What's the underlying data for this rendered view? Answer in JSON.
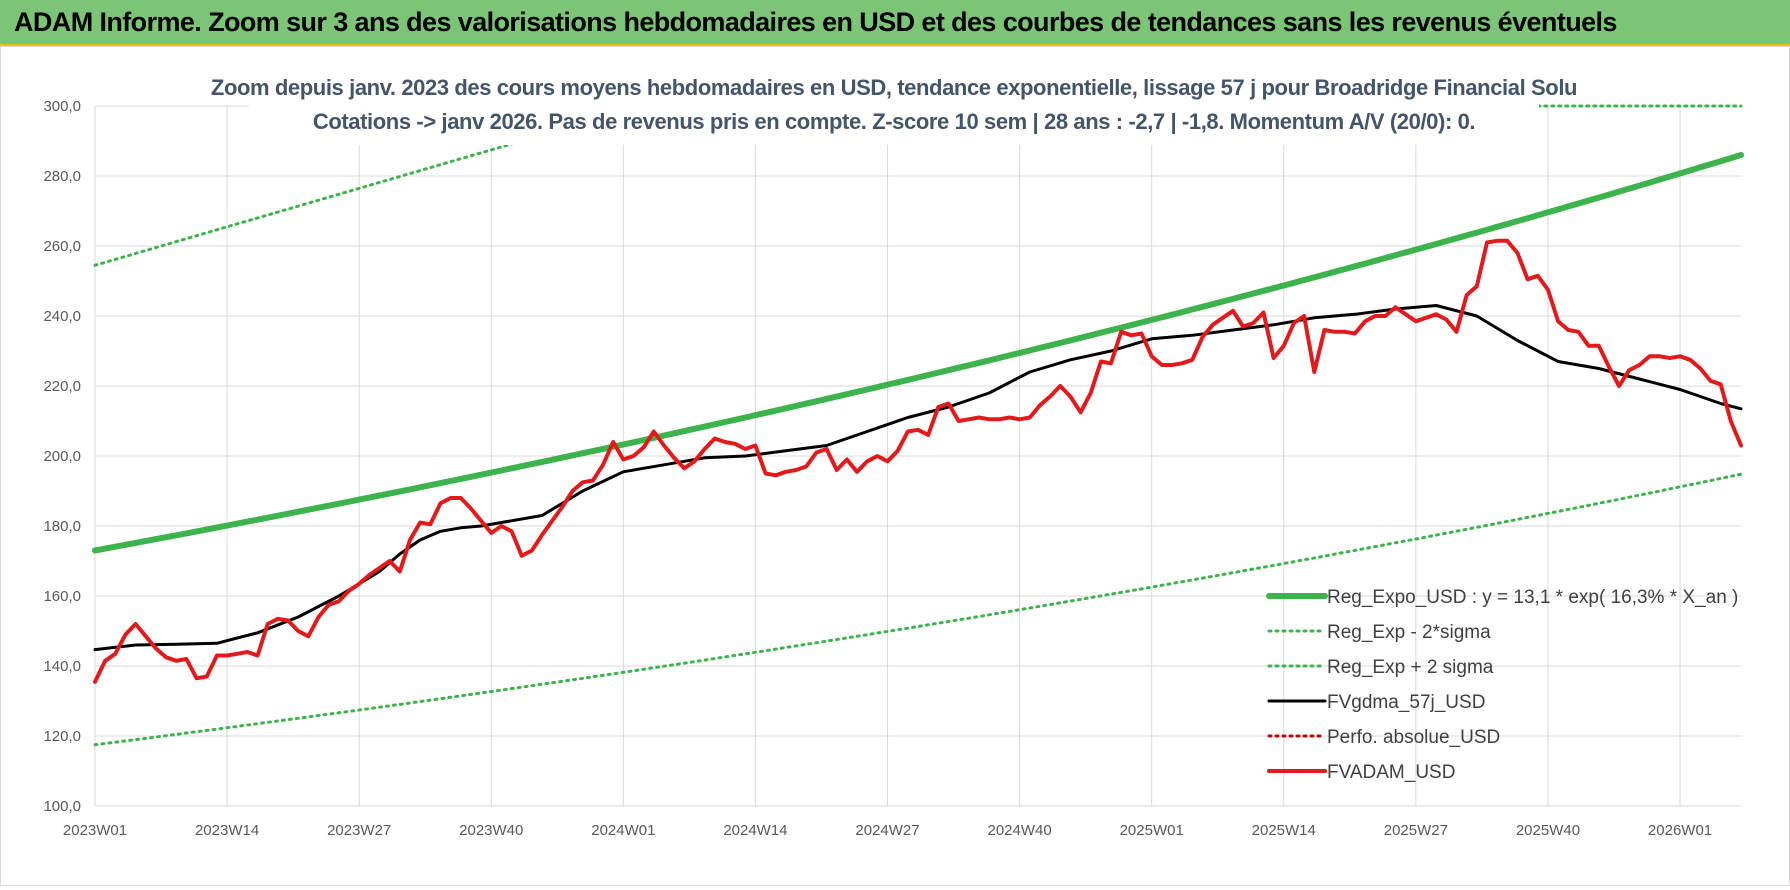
{
  "banner": {
    "title": "ADAM Informe. Zoom sur 3 ans des valorisations hebdomadaires en USD et des courbes de tendances sans les revenus éventuels"
  },
  "chart_data": {
    "type": "line",
    "title": "Zoom depuis janv. 2023 des cours moyens hebdomadaires en USD, tendance exponentielle, lissage 57 j pour Broadridge Financial Solu",
    "subtitle": "Cotations -> janv 2026. Pas de revenus pris en compte. Z-score 10 sem | 28 ans : -2,7 | -1,8. Momentum A/V (20/0): 0.",
    "xlabel": "",
    "ylabel": "",
    "ylim": [
      100,
      300
    ],
    "yticks": [
      "100,0",
      "120,0",
      "140,0",
      "160,0",
      "180,0",
      "200,0",
      "220,0",
      "240,0",
      "260,0",
      "280,0",
      "300,0"
    ],
    "xticks": [
      "2023W01",
      "2023W14",
      "2023W27",
      "2023W40",
      "2024W01",
      "2024W14",
      "2024W27",
      "2024W40",
      "2025W01",
      "2025W14",
      "2025W27",
      "2025W40",
      "2026W01"
    ],
    "x_range_weeks": [
      0,
      162
    ],
    "grid": true,
    "legend_position": "bottom-right",
    "series": [
      {
        "name": "Reg_Expo_USD : y = 13,1 * exp( 16,3% *  X_an )",
        "style": "solid-thick",
        "color": "#3cb44b",
        "x": [
          0,
          162
        ],
        "y": [
          173.0,
          286.0
        ],
        "curve": "exponential"
      },
      {
        "name": "Reg_Exp - 2*sigma",
        "style": "dotted",
        "color": "#3cb44b",
        "x": [
          0,
          162
        ],
        "y": [
          117.5,
          194.8
        ],
        "curve": "exponential"
      },
      {
        "name": "Reg_Exp + 2 sigma",
        "style": "dotted",
        "color": "#3cb44b",
        "x": [
          0,
          42,
          142,
          162
        ],
        "y": [
          254.5,
          290.0,
          300.0,
          300.0
        ],
        "note_clipped": true
      },
      {
        "name": "FVgdma_57j_USD",
        "style": "solid",
        "color": "#000000",
        "x": [
          0,
          4,
          8,
          12,
          14,
          16,
          20,
          24,
          28,
          30,
          32,
          34,
          36,
          38,
          40,
          44,
          48,
          52,
          56,
          60,
          64,
          68,
          72,
          76,
          80,
          84,
          88,
          92,
          96,
          100,
          104,
          108,
          112,
          116,
          120,
          124,
          128,
          132,
          136,
          140,
          144,
          148,
          152,
          156,
          160,
          162
        ],
        "y": [
          144.7,
          146.0,
          146.2,
          146.5,
          148.0,
          149.5,
          154.0,
          160.0,
          167.0,
          172.0,
          176.0,
          178.5,
          179.5,
          180.0,
          181.0,
          183.0,
          190.0,
          195.5,
          197.5,
          199.5,
          200.0,
          201.5,
          203.0,
          207.0,
          211.0,
          214.0,
          218.0,
          224.0,
          227.5,
          230.0,
          233.5,
          234.5,
          236.0,
          237.5,
          239.5,
          240.5,
          242.0,
          243.0,
          240.0,
          233.0,
          227.0,
          225.0,
          222.0,
          219.0,
          215.0,
          213.5
        ]
      },
      {
        "name": "Perfo. absolue_USD",
        "style": "dotted",
        "color": "#c00000",
        "x": [],
        "y": []
      },
      {
        "name": "FVADAM_USD",
        "style": "solid-thick",
        "color": "#e31a1c",
        "x": [
          0,
          1,
          2,
          3,
          4,
          5,
          6,
          7,
          8,
          9,
          10,
          11,
          12,
          13,
          14,
          15,
          16,
          17,
          18,
          19,
          20,
          21,
          22,
          23,
          24,
          25,
          26,
          27,
          28,
          29,
          30,
          31,
          32,
          33,
          34,
          35,
          36,
          37,
          38,
          39,
          40,
          41,
          42,
          43,
          44,
          45,
          46,
          47,
          48,
          49,
          50,
          51,
          52,
          53,
          54,
          55,
          56,
          57,
          58,
          59,
          60,
          61,
          62,
          63,
          64,
          65,
          66,
          67,
          68,
          69,
          70,
          71,
          72,
          73,
          74,
          75,
          76,
          77,
          78,
          79,
          80,
          81,
          82,
          83,
          84,
          85,
          86,
          87,
          88,
          89,
          90,
          91,
          92,
          93,
          94,
          95,
          96,
          97,
          98,
          99,
          100,
          101,
          102,
          103,
          104,
          105,
          106,
          107,
          108,
          109,
          110,
          111,
          112,
          113,
          114,
          115,
          116,
          117,
          118,
          119,
          120,
          121,
          122,
          123,
          124,
          125,
          126,
          127,
          128,
          129,
          130,
          131,
          132,
          133,
          134,
          135,
          136,
          137,
          138,
          139,
          140,
          141,
          142,
          143,
          144,
          145,
          146,
          147,
          148,
          149,
          150,
          151,
          152,
          153,
          154,
          155,
          156,
          157,
          158,
          159,
          160,
          161,
          162
        ],
        "y": [
          135.5,
          141.5,
          143.5,
          149.0,
          152.0,
          148.5,
          145.0,
          142.5,
          141.5,
          142.0,
          136.5,
          137.0,
          143.0,
          143.0,
          143.5,
          144.0,
          143.0,
          152.0,
          153.5,
          153.0,
          150.0,
          148.5,
          154.0,
          157.5,
          158.5,
          161.5,
          163.5,
          166.0,
          168.0,
          170.0,
          167.0,
          176.0,
          181.0,
          180.5,
          186.5,
          188.0,
          188.0,
          185.0,
          181.5,
          178.0,
          180.0,
          178.5,
          171.5,
          173.0,
          177.5,
          181.5,
          185.5,
          190.0,
          192.5,
          193.0,
          197.5,
          204.0,
          199.0,
          200.0,
          202.5,
          207.0,
          203.0,
          199.5,
          196.5,
          198.5,
          202.0,
          205.0,
          204.0,
          203.5,
          202.0,
          203.0,
          195.0,
          194.5,
          195.5,
          196.0,
          197.0,
          201.0,
          202.0,
          196.0,
          199.0,
          195.5,
          198.5,
          200.0,
          198.5,
          201.5,
          207.0,
          207.5,
          206.0,
          214.0,
          215.0,
          210.0,
          210.5,
          211.0,
          210.5,
          210.5,
          211.0,
          210.5,
          211.0,
          214.5,
          217.0,
          220.0,
          217.0,
          212.5,
          218.0,
          227.0,
          226.5,
          235.5,
          234.5,
          235.0,
          228.5,
          226.0,
          226.0,
          226.5,
          227.5,
          234.0,
          237.5,
          239.5,
          241.5,
          237.0,
          238.0,
          241.0,
          228.0,
          231.5,
          238.0,
          240.0,
          224.0,
          236.0,
          235.5,
          235.5,
          235.0,
          238.5,
          240.0,
          240.0,
          242.5,
          240.5,
          238.5,
          239.5,
          240.5,
          239.0,
          235.5,
          246.0,
          248.5,
          261.0,
          261.5,
          261.5,
          258.0,
          250.5,
          251.5,
          247.5,
          238.5,
          236.0,
          235.5,
          231.5,
          231.5,
          225.5,
          220.0,
          224.5,
          226.0,
          228.5,
          228.5,
          228.0,
          228.5,
          227.5,
          225.0,
          221.5,
          220.5,
          210.0,
          203.0
        ]
      }
    ]
  },
  "legend": {
    "items": [
      "Reg_Expo_USD : y = 13,1 * exp( 16,3% *  X_an )",
      "Reg_Exp - 2*sigma",
      "Reg_Exp + 2 sigma",
      "FVgdma_57j_USD",
      "Perfo. absolue_USD",
      "FVADAM_USD"
    ]
  }
}
